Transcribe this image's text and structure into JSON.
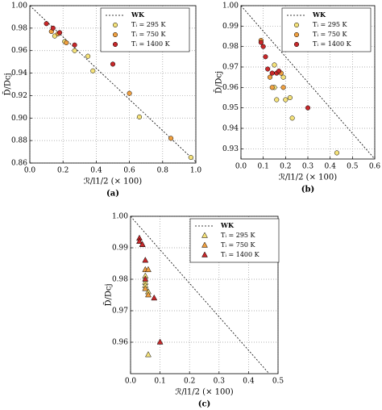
{
  "chart_data": [
    {
      "type": "scatter",
      "marker": "circle",
      "panel_label": "(a)",
      "xlabel": "ℛ/l1/2 (× 100)",
      "ylabel": "D̄/Dcj",
      "xlim": [
        0,
        1
      ],
      "ylim": [
        0.86,
        1.0
      ],
      "xticks": [
        {
          "value": 0,
          "label": "0.0"
        },
        0.2,
        0.4,
        0.6,
        0.8,
        {
          "value": 1,
          "label": "1.0"
        }
      ],
      "yticks": [
        0.86,
        0.88,
        {
          "value": 0.9,
          "label": "0.90"
        },
        0.92,
        0.94,
        0.96,
        0.98,
        {
          "value": 1,
          "label": "1.00"
        }
      ],
      "grid": true,
      "legend": "upper right",
      "series": [
        {
          "name": "WK",
          "color": "#000000",
          "linestyle": "dashed",
          "x": [
            0,
            1.0
          ],
          "values": [
            1.0,
            0.861
          ]
        },
        {
          "name": "Tᵢ = 295 K",
          "color": "#f5e27a",
          "x": [
            0.15,
            0.21,
            0.27,
            0.35,
            0.38,
            0.66,
            0.97
          ],
          "values": [
            0.973,
            0.968,
            0.96,
            0.955,
            0.942,
            0.901,
            0.865
          ]
        },
        {
          "name": "Tᵢ = 750 K",
          "color": "#f0a040",
          "x": [
            0.13,
            0.17,
            0.22,
            0.6,
            0.85
          ],
          "values": [
            0.977,
            0.975,
            0.967,
            0.922,
            0.882
          ]
        },
        {
          "name": "Tᵢ = 1400 K",
          "color": "#c8282a",
          "x": [
            0.1,
            0.14,
            0.18,
            0.27,
            0.5
          ],
          "values": [
            0.984,
            0.98,
            0.976,
            0.965,
            0.948
          ]
        }
      ]
    },
    {
      "type": "scatter",
      "marker": "circle",
      "panel_label": "(b)",
      "xlabel": "ℛ/l1/2 (× 100)",
      "ylabel": "D̄/Dcj",
      "xlim": [
        0,
        0.6
      ],
      "ylim": [
        0.925,
        1.0
      ],
      "xticks": [
        {
          "value": 0,
          "label": "0.0"
        },
        0.1,
        0.2,
        0.3,
        0.4,
        0.5,
        0.6
      ],
      "yticks": [
        0.93,
        0.94,
        0.95,
        0.96,
        0.97,
        0.98,
        0.99,
        {
          "value": 1,
          "label": "1.00"
        }
      ],
      "grid": true,
      "legend": "upper right",
      "series": [
        {
          "name": "WK",
          "color": "#000000",
          "linestyle": "dashed",
          "x": [
            0,
            0.6
          ],
          "values": [
            1.0,
            0.925
          ]
        },
        {
          "name": "Tᵢ = 295 K",
          "color": "#f5e27a",
          "x": [
            0.15,
            0.15,
            0.19,
            0.16,
            0.2,
            0.22,
            0.23,
            0.43
          ],
          "values": [
            0.971,
            0.96,
            0.965,
            0.954,
            0.954,
            0.955,
            0.945,
            0.928
          ]
        },
        {
          "name": "Tᵢ = 750 K",
          "color": "#f0a040",
          "x": [
            0.09,
            0.13,
            0.14,
            0.18,
            0.19
          ],
          "values": [
            0.983,
            0.965,
            0.96,
            0.967,
            0.96
          ]
        },
        {
          "name": "Tᵢ = 1400 K",
          "color": "#c8282a",
          "x": [
            0.09,
            0.1,
            0.11,
            0.12,
            0.14,
            0.16,
            0.17,
            0.3
          ],
          "values": [
            0.982,
            0.98,
            0.975,
            0.969,
            0.967,
            0.967,
            0.968,
            0.95
          ]
        }
      ]
    },
    {
      "type": "scatter",
      "marker": "triangle",
      "panel_label": "(c)",
      "xlabel": "ℛ/l1/2 (× 100)",
      "ylabel": "D̄/Dcj",
      "xlim": [
        0,
        0.5
      ],
      "ylim": [
        0.95,
        1.0
      ],
      "xticks": [
        {
          "value": 0,
          "label": "0.0"
        },
        0.1,
        0.2,
        0.3,
        0.4,
        0.5
      ],
      "yticks": [
        0.96,
        0.97,
        0.98,
        0.99,
        {
          "value": 1,
          "label": "1.00"
        }
      ],
      "grid": true,
      "legend": "upper right",
      "series": [
        {
          "name": "WK",
          "color": "#000000",
          "linestyle": "dashed",
          "x": [
            0,
            0.47
          ],
          "values": [
            1.0,
            0.95
          ]
        },
        {
          "name": "Tᵢ = 295 K",
          "color": "#f5e27a",
          "x": [
            0.05,
            0.05,
            0.05,
            0.06,
            0.06
          ],
          "values": [
            0.981,
            0.979,
            0.978,
            0.976,
            0.956
          ]
        },
        {
          "name": "Tᵢ = 750 K",
          "color": "#f0a040",
          "x": [
            0.04,
            0.05,
            0.06,
            0.06,
            0.05
          ],
          "values": [
            0.991,
            0.983,
            0.983,
            0.975,
            0.977
          ]
        },
        {
          "name": "Tᵢ = 1400 K",
          "color": "#c8282a",
          "x": [
            0.03,
            0.03,
            0.04,
            0.05,
            0.05,
            0.08,
            0.1
          ],
          "values": [
            0.993,
            0.992,
            0.991,
            0.986,
            0.98,
            0.974,
            0.96
          ]
        }
      ]
    }
  ]
}
